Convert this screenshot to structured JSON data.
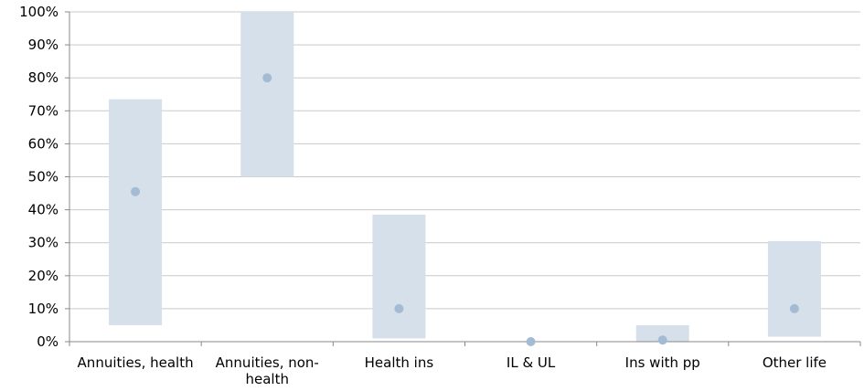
{
  "chart_data": {
    "type": "bar",
    "categories": [
      {
        "lines": [
          "Annuities, health"
        ]
      },
      {
        "lines": [
          "Annuities, non-",
          "health"
        ]
      },
      {
        "lines": [
          "Health ins"
        ]
      },
      {
        "lines": [
          "IL & UL"
        ]
      },
      {
        "lines": [
          "Ins with pp"
        ]
      },
      {
        "lines": [
          "Other life"
        ]
      }
    ],
    "category_names": [
      "Annuities, health",
      "Annuities, non-health",
      "Health ins",
      "IL & UL",
      "Ins with pp",
      "Other life"
    ],
    "series": [
      {
        "kind": "range",
        "low": [
          5,
          50,
          1,
          0,
          0,
          1.5
        ],
        "high": [
          73.5,
          100,
          38.5,
          0,
          5,
          30.5
        ],
        "color": "#d5e0eb"
      },
      {
        "kind": "point",
        "values": [
          45.5,
          80,
          10,
          0,
          0.5,
          10
        ],
        "color": "#a3bbd3"
      }
    ],
    "y_ticks": [
      "0%",
      "10%",
      "20%",
      "30%",
      "40%",
      "50%",
      "60%",
      "70%",
      "80%",
      "90%",
      "100%"
    ],
    "ylim": [
      0,
      100
    ],
    "grid": true,
    "legend": "none"
  }
}
